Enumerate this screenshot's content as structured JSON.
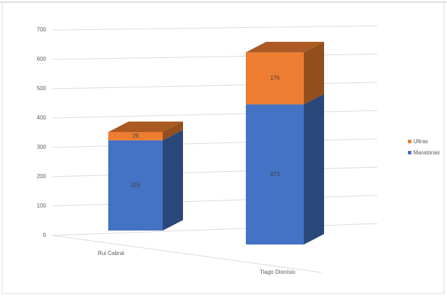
{
  "chart_data": {
    "type": "bar3d_stacked",
    "categories": [
      "Rui Cabral",
      "Tiago Dionísio"
    ],
    "series": [
      {
        "name": "Maratonas",
        "color": "#4472c4",
        "values": [
          315,
          473
        ]
      },
      {
        "name": "Ultras",
        "color": "#ed7d31",
        "values": [
          29,
          176
        ]
      }
    ],
    "ylim": [
      0,
      700
    ],
    "yticks": [
      0,
      100,
      200,
      300,
      400,
      500,
      600,
      700
    ],
    "grid": true,
    "legend": "right"
  }
}
